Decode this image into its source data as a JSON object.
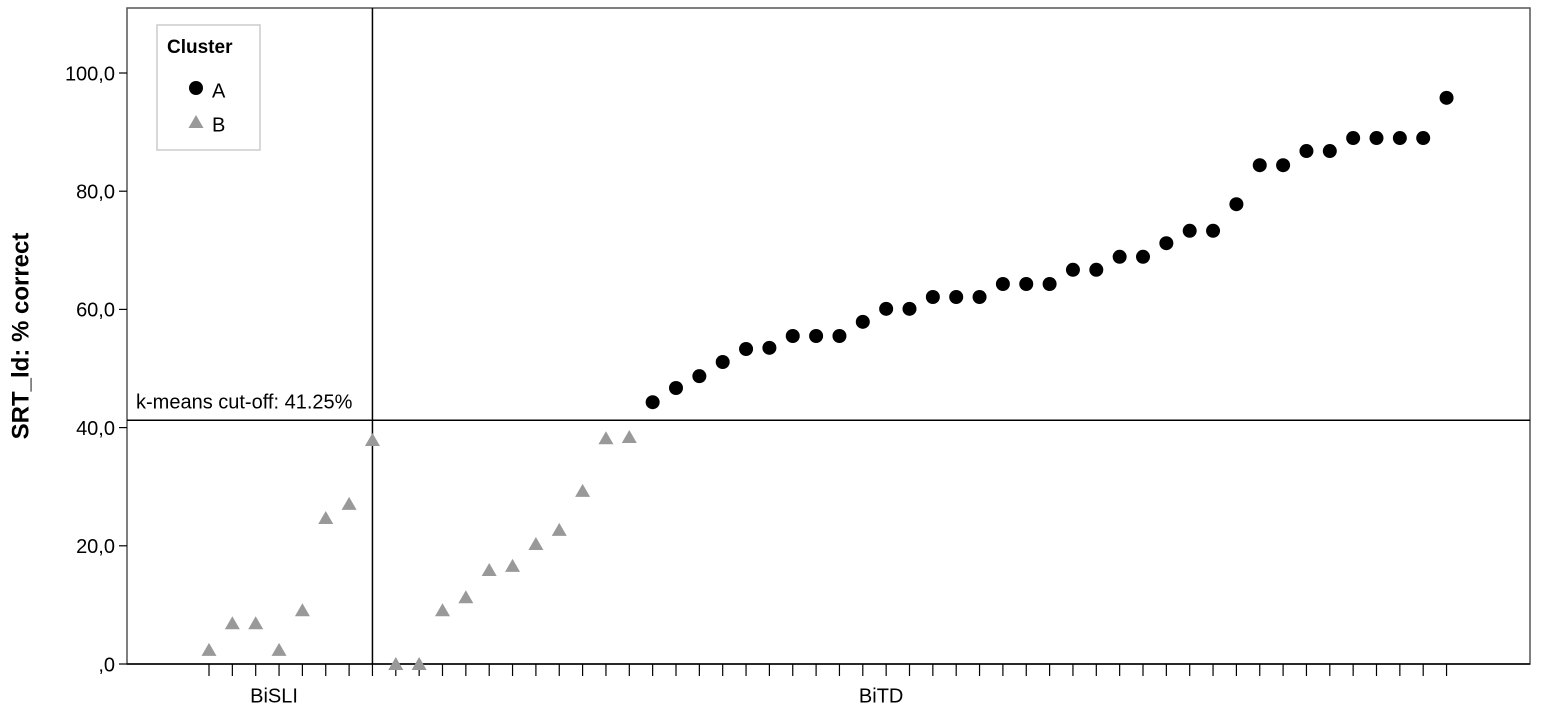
{
  "chart_data": {
    "type": "scatter",
    "y_label": "SRT_ld: % correct",
    "legend_title": "Cluster",
    "legend_position": "upper left",
    "categories": [
      null,
      null,
      null,
      "BiSLI",
      null,
      null,
      null,
      null,
      null,
      null,
      null,
      null,
      null,
      null,
      null,
      null,
      null,
      null,
      null,
      null,
      null,
      null,
      null,
      null,
      null,
      null,
      null,
      null,
      null,
      "BiTD",
      null,
      null,
      null,
      null,
      null,
      null,
      null,
      null,
      null,
      null,
      null,
      null,
      null,
      null,
      null,
      null,
      null,
      null,
      null,
      null,
      null,
      null,
      null,
      null
    ],
    "series": [
      {
        "name": "A",
        "color": "#000000",
        "marker": "circle",
        "values": [
          null,
          null,
          null,
          null,
          null,
          null,
          null,
          null,
          null,
          null,
          null,
          null,
          null,
          null,
          null,
          null,
          null,
          null,
          null,
          44.3,
          46.7,
          48.7,
          51.1,
          53.3,
          53.5,
          55.5,
          55.5,
          55.5,
          57.9,
          60.1,
          60.1,
          62.1,
          62.1,
          62.1,
          64.3,
          64.3,
          64.3,
          66.7,
          66.7,
          68.9,
          68.9,
          71.2,
          73.3,
          73.3,
          77.8,
          84.4,
          84.4,
          86.8,
          86.8,
          89.0,
          89.0,
          89.0,
          89.0,
          95.8
        ]
      },
      {
        "name": "B",
        "color": "#999999",
        "marker": "triangle",
        "values": [
          2.4,
          6.9,
          6.9,
          2.4,
          9.1,
          24.7,
          27.1,
          37.9,
          0,
          0,
          9.1,
          11.3,
          15.9,
          16.6,
          20.3,
          22.7,
          29.3,
          38.2,
          38.4,
          null,
          null,
          null,
          null,
          null,
          null,
          null,
          null,
          null,
          null,
          null,
          null,
          null,
          null,
          null,
          null,
          null,
          null,
          null,
          null,
          null,
          null,
          null,
          null,
          null,
          null,
          null,
          null,
          null,
          null,
          null,
          null,
          null,
          null,
          null
        ]
      }
    ],
    "cutoff": {
      "value": 41.25,
      "label": "k-means cut-off: 41.25%"
    },
    "ylim": [
      0,
      111
    ],
    "yticks": [
      {
        "value": 0,
        "label": ",0"
      },
      {
        "value": 20,
        "label": "20,0"
      },
      {
        "value": 40,
        "label": "40,0"
      },
      {
        "value": 60,
        "label": "60,0"
      },
      {
        "value": 80,
        "label": "80,0"
      },
      {
        "value": 100,
        "label": "100,0"
      }
    ]
  }
}
